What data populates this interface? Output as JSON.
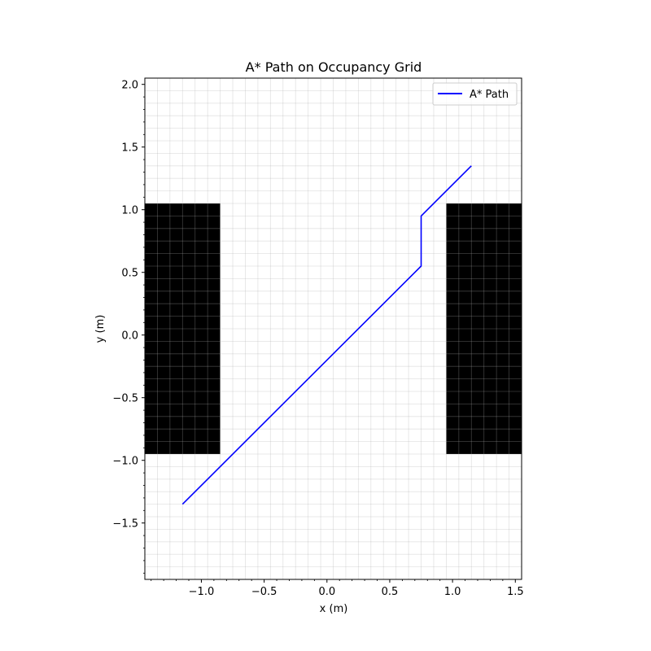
{
  "chart_data": {
    "type": "line",
    "title": "A* Path on Occupancy Grid",
    "xlabel": "x (m)",
    "ylabel": "y (m)",
    "xlim": [
      -1.45,
      1.55
    ],
    "ylim": [
      -1.95,
      2.05
    ],
    "x_ticks": [
      -1.0,
      -0.5,
      0.0,
      0.5,
      1.0,
      1.5
    ],
    "x_tick_labels": [
      "−1.0",
      "−0.5",
      "0.0",
      "0.5",
      "1.0",
      "1.5"
    ],
    "y_ticks": [
      -1.5,
      -1.0,
      -0.5,
      0.0,
      0.5,
      1.0,
      1.5,
      2.0
    ],
    "y_tick_labels": [
      "−1.5",
      "−1.0",
      "−0.5",
      "0.0",
      "0.5",
      "1.0",
      "1.5",
      "2.0"
    ],
    "grid": true,
    "grid_cell": 0.1,
    "legend_position": "top-right",
    "obstacles": [
      {
        "x_range": [
          -1.45,
          -0.85
        ],
        "y_range": [
          -0.95,
          1.05
        ]
      },
      {
        "x_range": [
          0.95,
          1.55
        ],
        "y_range": [
          -0.95,
          1.05
        ]
      }
    ],
    "series": [
      {
        "name": "A* Path",
        "color": "#0000ff",
        "x": [
          -1.15,
          0.75,
          0.75,
          1.15
        ],
        "y": [
          -1.35,
          0.55,
          0.95,
          1.35
        ]
      }
    ]
  }
}
